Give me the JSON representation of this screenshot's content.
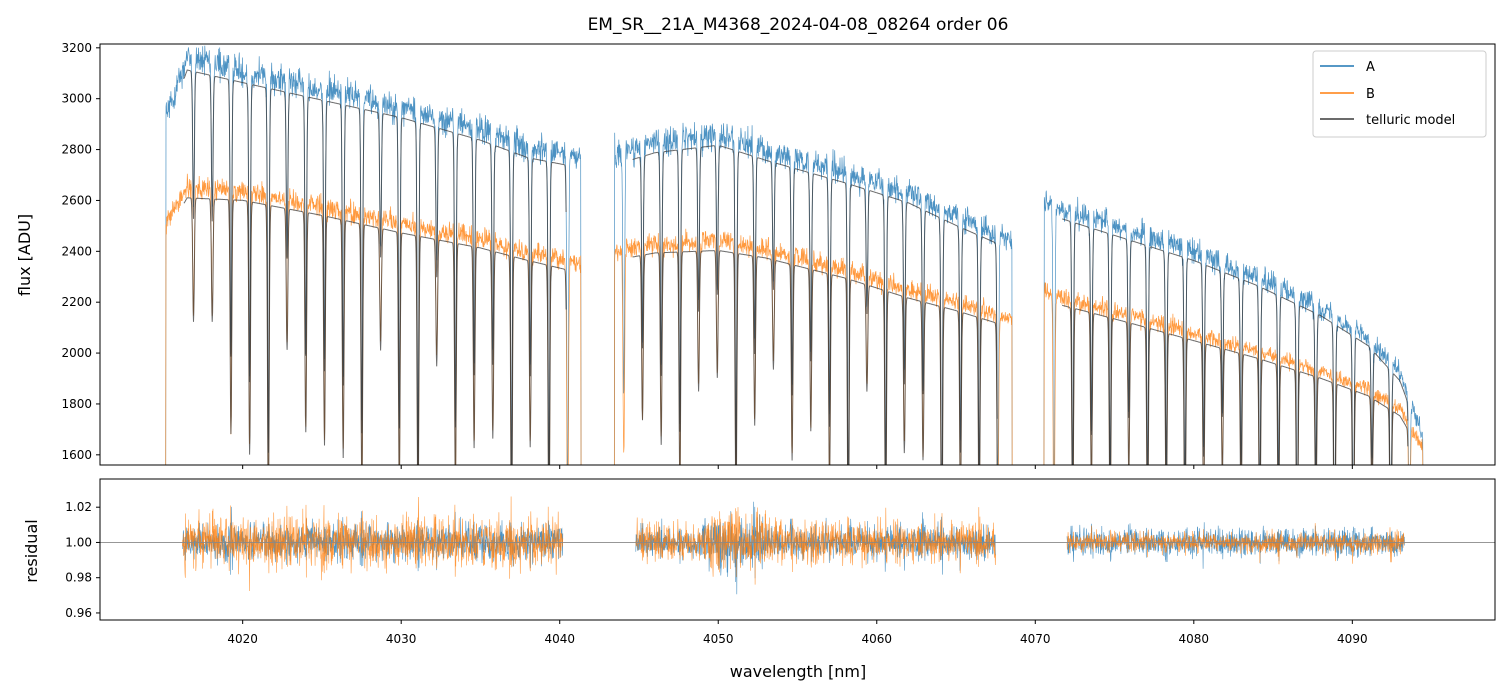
{
  "chart_data": {
    "title": "EM_SR__21A_M4368_2024-04-08_08264  order 06",
    "colors": {
      "A": "#1f77b4",
      "B": "#ff7f0e",
      "model": "#3a3a3a",
      "axis": "#000000",
      "refline": "#888888"
    },
    "xlabel": "wavelength [nm]",
    "xlim": [
      4011,
      4099
    ],
    "xticks": [
      4020,
      4030,
      4040,
      4050,
      4060,
      4070,
      4080,
      4090
    ],
    "xtick_labels": [
      "4020",
      "4030",
      "4040",
      "4050",
      "4060",
      "4070",
      "4080",
      "4090"
    ],
    "segments": [
      {
        "start": 4015.1,
        "end": 4041.4
      },
      {
        "start": 4043.4,
        "end": 4068.6
      },
      {
        "start": 4070.5,
        "end": 4094.5
      }
    ],
    "panels": [
      {
        "type": "line",
        "name": "flux",
        "ylabel": "flux [ADU]",
        "ylim": [
          1560,
          3215
        ],
        "yticks": [
          1600,
          1800,
          2000,
          2200,
          2400,
          2600,
          2800,
          3000,
          3200
        ],
        "ytick_labels": [
          "1600",
          "1800",
          "2000",
          "2200",
          "2400",
          "2600",
          "2800",
          "3000",
          "3200"
        ],
        "series": [
          {
            "name": "A",
            "x": [
              4015.1,
              4016.5,
              4020,
              4025,
              4030,
              4035,
              4038,
              4041.3,
              4043.4,
              4046,
              4050,
              4053,
              4058,
              4062,
              4065,
              4068.6,
              4070.5,
              4073,
              4076,
              4080,
              4084,
              4088,
              4091,
              4093,
              4094.5
            ],
            "y": [
              2920,
              3160,
              3110,
              3040,
              2970,
              2880,
              2810,
              2770,
              2780,
              2830,
              2860,
              2800,
              2710,
              2630,
              2540,
              2440,
              2590,
              2540,
              2480,
              2400,
              2300,
              2180,
              2060,
              1920,
              1660
            ]
          },
          {
            "name": "B",
            "x": [
              4015.1,
              4016.5,
              4020,
              4025,
              4030,
              4035,
              4038,
              4041.3,
              4043.4,
              4046,
              4050,
              4053,
              4058,
              4062,
              4065,
              4068.6,
              4070.5,
              4073,
              4076,
              4080,
              4084,
              4088,
              4091,
              4093,
              4094.5
            ],
            "y": [
              2500,
              2650,
              2640,
              2580,
              2510,
              2450,
              2400,
              2350,
              2400,
              2430,
              2440,
              2410,
              2330,
              2250,
              2200,
              2130,
              2240,
              2200,
              2150,
              2080,
              2010,
              1930,
              1860,
              1780,
              1620
            ]
          },
          {
            "name": "telluric model"
          }
        ],
        "telluric_lines_first": 4016.9,
        "telluric_line_spacing": 1.18,
        "telluric_depth_range": [
          0.18,
          0.5
        ],
        "legend": {
          "location": "top-right",
          "entries": [
            "A",
            "B",
            "telluric model"
          ]
        }
      },
      {
        "type": "line",
        "name": "residual",
        "ylabel": "residual",
        "ylim": [
          0.956,
          1.036
        ],
        "yticks": [
          0.96,
          0.98,
          1.0,
          1.02
        ],
        "ytick_labels": [
          "0.96",
          "0.98",
          "1.00",
          "1.02"
        ],
        "reference_line": 1.0,
        "residual_ranges": [
          {
            "start": 4016.2,
            "end": 4040.2,
            "noise_A": 0.011,
            "noise_B": 0.015
          },
          {
            "start": 4044.8,
            "end": 4067.5,
            "noise_A": 0.01,
            "noise_B": 0.012
          },
          {
            "start": 4072.0,
            "end": 4093.3,
            "noise_A": 0.008,
            "noise_B": 0.006
          }
        ]
      }
    ]
  }
}
